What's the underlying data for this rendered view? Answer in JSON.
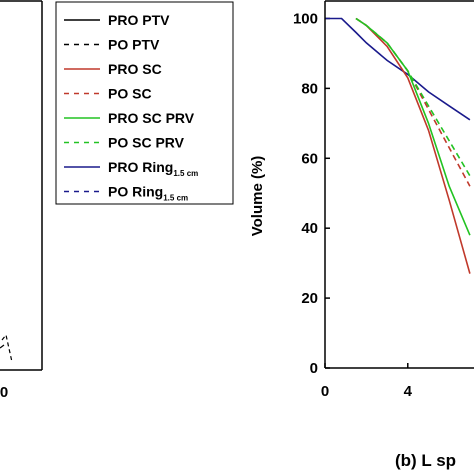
{
  "chart_data": [
    {
      "type": "line",
      "panel": "left (cropped)",
      "x_tick_labels": [
        "0"
      ],
      "series": [
        {
          "name": "PRO PTV",
          "color": "#000000",
          "dash": "solid",
          "x": [],
          "y": []
        },
        {
          "name": "PO PTV",
          "color": "#000000",
          "dash": "dashed",
          "x": [],
          "y": []
        }
      ]
    },
    {
      "type": "line",
      "title": "(b) L sp",
      "xlabel": "",
      "ylabel": "Volume (%)",
      "xlim": [
        0,
        7.2
      ],
      "ylim": [
        0,
        105
      ],
      "x_ticks": [
        0,
        4
      ],
      "y_ticks": [
        0,
        20,
        40,
        60,
        80,
        100
      ],
      "legend_position": "outside-left",
      "series": [
        {
          "name": "PRO PTV",
          "color": "#000000",
          "dash": "solid",
          "x": [],
          "y": []
        },
        {
          "name": "PO PTV",
          "color": "#000000",
          "dash": "dashed",
          "x": [],
          "y": []
        },
        {
          "name": "PRO SC",
          "color": "#c0392b",
          "dash": "solid",
          "x": [
            1.5,
            2,
            3,
            4,
            5,
            6,
            7
          ],
          "y": [
            100,
            98,
            92,
            83,
            68,
            48,
            27
          ]
        },
        {
          "name": "PO SC",
          "color": "#c0392b",
          "dash": "dashed",
          "x": [
            1.5,
            2,
            3,
            4,
            5,
            6,
            7
          ],
          "y": [
            100,
            98,
            93,
            85,
            74,
            63,
            52
          ]
        },
        {
          "name": "PRO SC PRV",
          "color": "#22c322",
          "dash": "solid",
          "x": [
            1.5,
            2,
            3,
            4,
            5,
            6,
            7
          ],
          "y": [
            100,
            98,
            93,
            85,
            70,
            52,
            38
          ]
        },
        {
          "name": "PO SC PRV",
          "color": "#22c322",
          "dash": "dashed",
          "x": [
            1.5,
            2,
            3,
            4,
            5,
            6,
            7
          ],
          "y": [
            100,
            98,
            93,
            85,
            75,
            65,
            55
          ]
        },
        {
          "name": "PRO Ring",
          "subscript": "1.5 cm",
          "color": "#1a1a8c",
          "dash": "solid",
          "x": [
            0,
            0.8,
            1.5,
            2,
            3,
            4,
            5,
            6,
            7
          ],
          "y": [
            100,
            100,
            96,
            93,
            88,
            84,
            79,
            75,
            71
          ]
        },
        {
          "name": "PO Ring",
          "subscript": "1.5 cm",
          "color": "#1a1a8c",
          "dash": "dashed",
          "x": [],
          "y": []
        }
      ]
    }
  ]
}
